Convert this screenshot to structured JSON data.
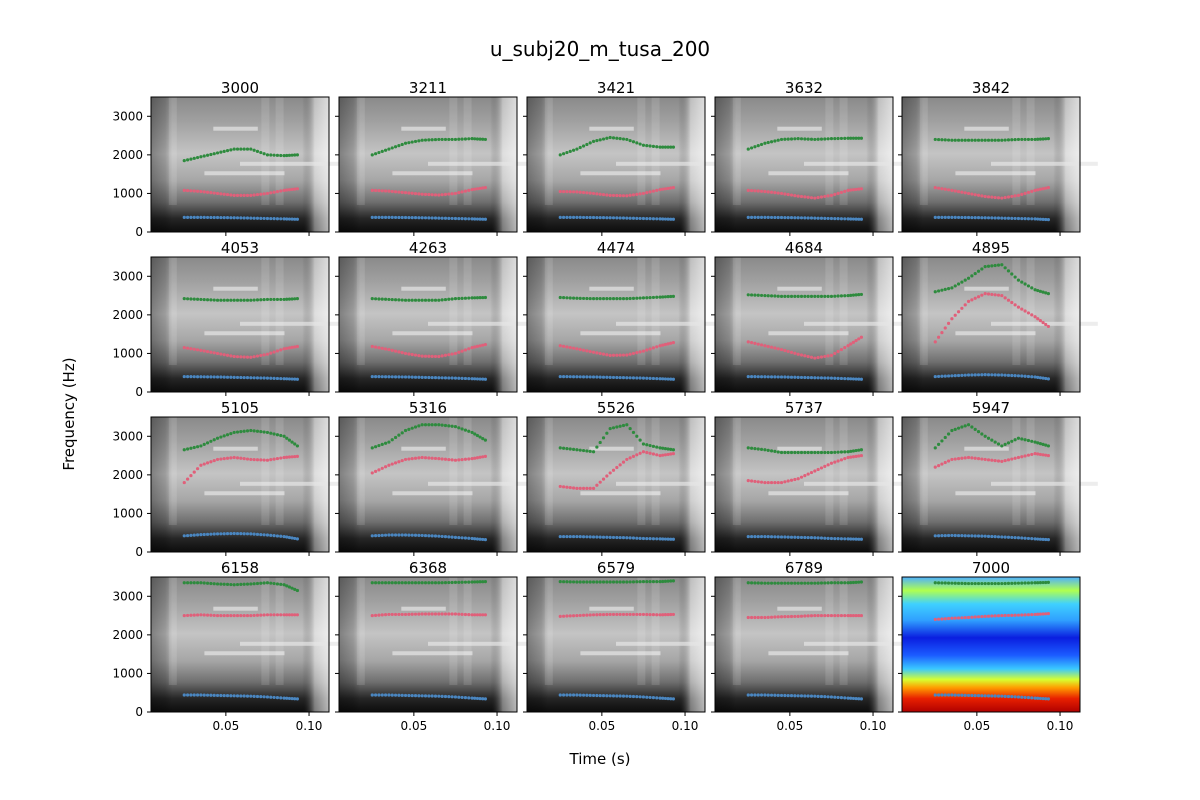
{
  "figure": {
    "title": "u_subj20_m_tusa_200",
    "xlabel": "Time (s)",
    "ylabel": "Frequency (Hz)"
  },
  "chart_data": {
    "type": "scatter",
    "layout": "4x5 grid of spectrogram panels with formant tracks",
    "xlim": [
      0.005,
      0.112
    ],
    "ylim": [
      0,
      3500
    ],
    "x_ticks": [
      0.05,
      0.1
    ],
    "x_tick_labels": [
      "0.05",
      "0.10"
    ],
    "y_ticks": [
      0,
      1000,
      2000,
      3000
    ],
    "y_tick_labels": [
      "0",
      "1000",
      "2000",
      "3000"
    ],
    "background": "spectrogram (grayscale; last panel in jet colormap)",
    "series_colors": {
      "F1": "#4a86c0",
      "F2": "#e0607a",
      "F3": "#2e8b3e"
    },
    "track_x": [
      0.025,
      0.035,
      0.045,
      0.055,
      0.065,
      0.075,
      0.085,
      0.093
    ],
    "panels": [
      {
        "title": "3000",
        "F1": [
          380,
          380,
          375,
          370,
          360,
          350,
          340,
          330
        ],
        "F2": [
          1080,
          1050,
          1000,
          950,
          950,
          1000,
          1080,
          1120
        ],
        "F3": [
          1850,
          1950,
          2050,
          2150,
          2150,
          2000,
          1980,
          2000
        ]
      },
      {
        "title": "3211",
        "F1": [
          380,
          380,
          375,
          370,
          360,
          350,
          340,
          330
        ],
        "F2": [
          1080,
          1060,
          1020,
          980,
          960,
          1000,
          1100,
          1150
        ],
        "F3": [
          2000,
          2150,
          2300,
          2380,
          2400,
          2400,
          2420,
          2400
        ]
      },
      {
        "title": "3421",
        "F1": [
          380,
          380,
          375,
          370,
          360,
          350,
          340,
          330
        ],
        "F2": [
          1050,
          1040,
          1000,
          950,
          940,
          1000,
          1100,
          1150
        ],
        "F3": [
          2000,
          2150,
          2350,
          2450,
          2400,
          2250,
          2200,
          2200
        ]
      },
      {
        "title": "3632",
        "F1": [
          380,
          380,
          375,
          370,
          360,
          350,
          340,
          330
        ],
        "F2": [
          1080,
          1050,
          1000,
          930,
          880,
          950,
          1080,
          1120
        ],
        "F3": [
          2150,
          2300,
          2400,
          2420,
          2400,
          2420,
          2430,
          2430
        ]
      },
      {
        "title": "3842",
        "F1": [
          380,
          380,
          375,
          370,
          360,
          350,
          340,
          320
        ],
        "F2": [
          1150,
          1080,
          1000,
          920,
          880,
          950,
          1080,
          1150
        ],
        "F3": [
          2400,
          2380,
          2380,
          2380,
          2380,
          2400,
          2400,
          2420
        ]
      },
      {
        "title": "4053",
        "F1": [
          400,
          395,
          390,
          380,
          370,
          360,
          345,
          330
        ],
        "F2": [
          1150,
          1080,
          1000,
          920,
          900,
          980,
          1120,
          1180
        ],
        "F3": [
          2420,
          2400,
          2380,
          2380,
          2380,
          2400,
          2400,
          2420
        ]
      },
      {
        "title": "4263",
        "F1": [
          400,
          395,
          390,
          380,
          370,
          360,
          345,
          330
        ],
        "F2": [
          1180,
          1100,
          1000,
          930,
          920,
          1000,
          1150,
          1230
        ],
        "F3": [
          2420,
          2400,
          2380,
          2380,
          2380,
          2420,
          2440,
          2450
        ]
      },
      {
        "title": "4474",
        "F1": [
          400,
          395,
          390,
          380,
          370,
          360,
          345,
          330
        ],
        "F2": [
          1200,
          1120,
          1030,
          950,
          960,
          1060,
          1200,
          1280
        ],
        "F3": [
          2450,
          2430,
          2420,
          2420,
          2420,
          2440,
          2460,
          2480
        ]
      },
      {
        "title": "4684",
        "F1": [
          400,
          395,
          390,
          380,
          370,
          360,
          345,
          330
        ],
        "F2": [
          1300,
          1200,
          1100,
          980,
          880,
          950,
          1200,
          1420
        ],
        "F3": [
          2520,
          2500,
          2480,
          2480,
          2480,
          2480,
          2500,
          2530
        ]
      },
      {
        "title": "4895",
        "F1": [
          400,
          420,
          440,
          450,
          440,
          420,
          390,
          340
        ],
        "F2": [
          1300,
          1900,
          2350,
          2550,
          2500,
          2200,
          1950,
          1700
        ],
        "F3": [
          2600,
          2700,
          2950,
          3250,
          3300,
          2900,
          2650,
          2550
        ]
      },
      {
        "title": "5105",
        "F1": [
          420,
          450,
          470,
          480,
          470,
          440,
          400,
          340
        ],
        "F2": [
          1800,
          2250,
          2400,
          2450,
          2400,
          2380,
          2450,
          2480
        ],
        "F3": [
          2650,
          2750,
          2950,
          3100,
          3150,
          3100,
          3000,
          2750
        ]
      },
      {
        "title": "5316",
        "F1": [
          420,
          440,
          440,
          430,
          410,
          380,
          350,
          320
        ],
        "F2": [
          2050,
          2250,
          2400,
          2450,
          2420,
          2380,
          2420,
          2480
        ],
        "F3": [
          2700,
          2850,
          3150,
          3300,
          3300,
          3250,
          3100,
          2900
        ]
      },
      {
        "title": "5526",
        "F1": [
          400,
          400,
          390,
          380,
          370,
          350,
          340,
          330
        ],
        "F2": [
          1700,
          1650,
          1650,
          2050,
          2400,
          2600,
          2500,
          2550
        ],
        "F3": [
          2700,
          2650,
          2600,
          3200,
          3300,
          2800,
          2700,
          2650
        ]
      },
      {
        "title": "5737",
        "F1": [
          400,
          400,
          390,
          380,
          370,
          350,
          340,
          330
        ],
        "F2": [
          1850,
          1800,
          1800,
          1900,
          2100,
          2300,
          2450,
          2500
        ],
        "F3": [
          2700,
          2650,
          2580,
          2580,
          2580,
          2580,
          2600,
          2650
        ]
      },
      {
        "title": "5947",
        "F1": [
          420,
          430,
          420,
          410,
          390,
          370,
          340,
          320
        ],
        "F2": [
          2200,
          2400,
          2450,
          2400,
          2350,
          2450,
          2550,
          2500
        ],
        "F3": [
          2700,
          3150,
          3300,
          3000,
          2750,
          2950,
          2850,
          2750
        ]
      },
      {
        "title": "6158",
        "F1": [
          440,
          440,
          430,
          420,
          410,
          390,
          360,
          340
        ],
        "F2": [
          2500,
          2520,
          2500,
          2500,
          2500,
          2520,
          2520,
          2520
        ],
        "F3": [
          3350,
          3350,
          3320,
          3300,
          3320,
          3350,
          3300,
          3150
        ]
      },
      {
        "title": "6368",
        "F1": [
          440,
          440,
          430,
          420,
          410,
          390,
          360,
          340
        ],
        "F2": [
          2500,
          2530,
          2530,
          2540,
          2540,
          2540,
          2520,
          2520
        ],
        "F3": [
          3350,
          3350,
          3350,
          3350,
          3350,
          3360,
          3370,
          3380
        ]
      },
      {
        "title": "6579",
        "F1": [
          440,
          440,
          430,
          420,
          410,
          390,
          360,
          340
        ],
        "F2": [
          2480,
          2500,
          2520,
          2530,
          2530,
          2530,
          2520,
          2530
        ],
        "F3": [
          3380,
          3370,
          3370,
          3370,
          3370,
          3380,
          3380,
          3400
        ]
      },
      {
        "title": "6789",
        "F1": [
          440,
          440,
          430,
          420,
          410,
          390,
          360,
          340
        ],
        "F2": [
          2450,
          2450,
          2470,
          2480,
          2500,
          2500,
          2500,
          2500
        ],
        "F3": [
          3350,
          3340,
          3340,
          3340,
          3340,
          3350,
          3350,
          3370
        ]
      },
      {
        "title": "7000",
        "F1": [
          440,
          440,
          430,
          420,
          410,
          390,
          360,
          340
        ],
        "F2": [
          2400,
          2430,
          2450,
          2480,
          2500,
          2510,
          2530,
          2550
        ],
        "F3": [
          3350,
          3340,
          3330,
          3330,
          3330,
          3340,
          3350,
          3360
        ],
        "background": "jet"
      }
    ]
  }
}
